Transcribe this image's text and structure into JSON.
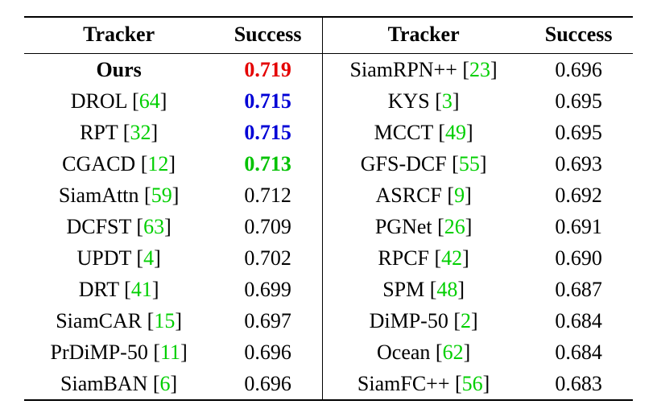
{
  "headers": {
    "tracker": "Tracker",
    "success": "Success"
  },
  "rows": [
    {
      "l_name_pre": "",
      "l_name": "Ours",
      "l_cite": "",
      "l_name_bold": true,
      "l_val": "0.719",
      "l_val_color": "red",
      "l_val_bold": true,
      "r_name": "SiamRPN++",
      "r_cite": "23",
      "r_val": "0.696"
    },
    {
      "l_name": "DROL",
      "l_cite": "64",
      "l_val": "0.715",
      "l_val_color": "blue",
      "l_val_bold": true,
      "r_name": "KYS",
      "r_cite": "3",
      "r_val": "0.695"
    },
    {
      "l_name": "RPT",
      "l_cite": "32",
      "l_val": "0.715",
      "l_val_color": "blue",
      "l_val_bold": true,
      "r_name": "MCCT",
      "r_cite": "49",
      "r_val": "0.695"
    },
    {
      "l_name": "CGACD",
      "l_cite": "12",
      "l_val": "0.713",
      "l_val_color": "green",
      "l_val_bold": true,
      "r_name": "GFS-DCF",
      "r_cite": "55",
      "r_val": "0.693"
    },
    {
      "l_name": "SiamAttn",
      "l_cite": "59",
      "l_val": "0.712",
      "r_name": "ASRCF",
      "r_cite": "9",
      "r_val": "0.692"
    },
    {
      "l_name": "DCFST",
      "l_cite": "63",
      "l_val": "0.709",
      "r_name": "PGNet",
      "r_cite": "26",
      "r_val": "0.691"
    },
    {
      "l_name": "UPDT",
      "l_cite": "4",
      "l_val": "0.702",
      "r_name": "RPCF",
      "r_cite": "42",
      "r_val": "0.690"
    },
    {
      "l_name": "DRT",
      "l_cite": "41",
      "l_val": "0.699",
      "r_name": "SPM",
      "r_cite": "48",
      "r_val": "0.687"
    },
    {
      "l_name": "SiamCAR",
      "l_cite": "15",
      "l_val": "0.697",
      "r_name": "DiMP-50",
      "r_cite": "2",
      "r_val": "0.684"
    },
    {
      "l_name": "PrDiMP-50",
      "l_cite": "11",
      "l_val": "0.696",
      "r_name": "Ocean",
      "r_cite": "62",
      "r_val": "0.684"
    },
    {
      "l_name": "SiamBAN",
      "l_cite": "6",
      "l_val": "0.696",
      "r_name": "SiamFC++",
      "r_cite": "56",
      "r_val": "0.683"
    }
  ]
}
